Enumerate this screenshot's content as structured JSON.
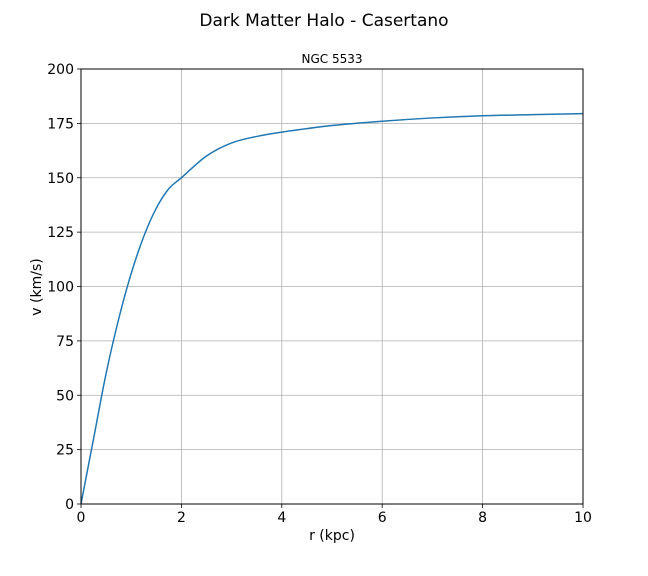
{
  "chart_data": {
    "type": "line",
    "suptitle": "Dark Matter Halo - Casertano",
    "title": "NGC 5533",
    "xlabel": "r (kpc)",
    "ylabel": "v (km/s)",
    "xlim": [
      0,
      10
    ],
    "ylim": [
      0,
      200
    ],
    "xticks": [
      0,
      2,
      4,
      6,
      8,
      10
    ],
    "yticks": [
      0,
      25,
      50,
      75,
      100,
      125,
      150,
      175,
      200
    ],
    "grid": true,
    "line_color": "#1f77b4",
    "series": [
      {
        "x": [
          0,
          0.25,
          0.5,
          0.75,
          1.0,
          1.25,
          1.5,
          1.75,
          2.0,
          2.5,
          3.0,
          3.5,
          4.0,
          5.0,
          6.0,
          7.0,
          8.0,
          9.0,
          10.0
        ],
        "values": [
          0,
          30,
          60,
          85,
          106,
          123,
          136,
          145,
          150,
          160,
          166,
          169,
          171,
          174,
          176,
          177.5,
          178.5,
          179,
          179.5
        ]
      }
    ]
  }
}
